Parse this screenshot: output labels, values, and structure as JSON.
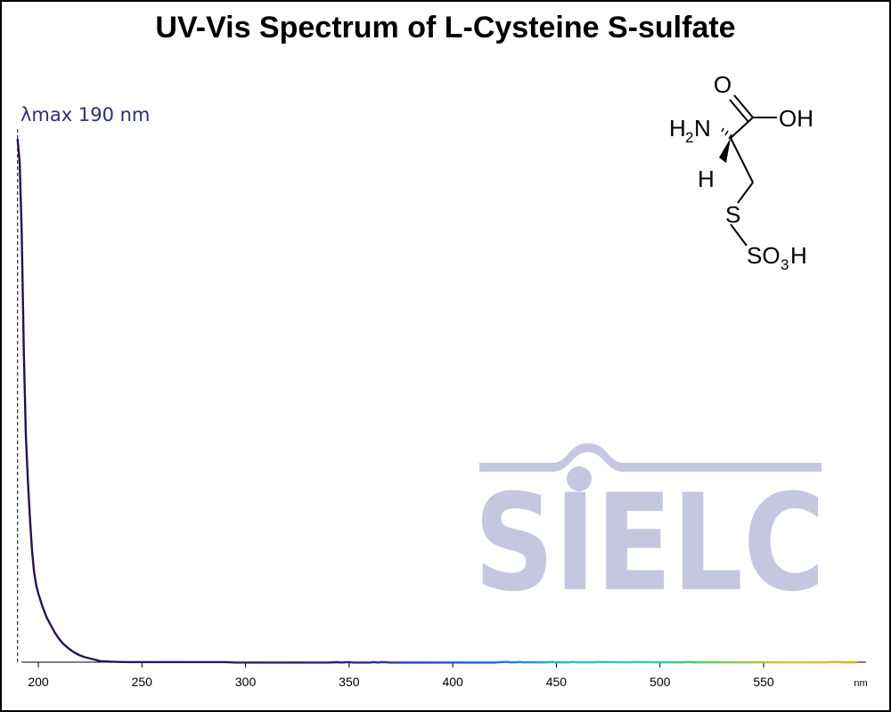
{
  "chart_data": {
    "type": "line",
    "title": "UV-Vis Spectrum of L-Cysteine S-sulfate",
    "xlabel": "",
    "ylabel": "",
    "x_unit": "nm",
    "xlim": [
      190,
      595
    ],
    "ylim": [
      0,
      1.0
    ],
    "x_ticks": [
      200,
      250,
      300,
      350,
      400,
      450,
      500,
      550
    ],
    "grid": false,
    "annotation": {
      "text": "λmax  190 nm",
      "wavelength": 190,
      "style": "dashed vertical line"
    },
    "series": [
      {
        "x": [
          190,
          191,
          192,
          193,
          194,
          195,
          196,
          197,
          198,
          199,
          200,
          202,
          204,
          206,
          208,
          210,
          212,
          214,
          216,
          218,
          220,
          222,
          225,
          228,
          230,
          235,
          240,
          245,
          250,
          260,
          270,
          280,
          290,
          295,
          300,
          320,
          340,
          344,
          346,
          350,
          352,
          354,
          360,
          362,
          364,
          366,
          370,
          380,
          400,
          420,
          426,
          428,
          430,
          432,
          434,
          440,
          446,
          448,
          450,
          456,
          458,
          460,
          468,
          470,
          486,
          488,
          500,
          512,
          514,
          516,
          540,
          560,
          580,
          586,
          588,
          590,
          595
        ],
        "y": [
          1.0,
          0.955,
          0.82,
          0.6,
          0.44,
          0.35,
          0.28,
          0.22,
          0.18,
          0.155,
          0.14,
          0.115,
          0.095,
          0.08,
          0.066,
          0.054,
          0.045,
          0.038,
          0.032,
          0.027,
          0.023,
          0.02,
          0.017,
          0.014,
          0.012,
          0.011,
          0.0105,
          0.0103,
          0.0103,
          0.0103,
          0.0103,
          0.0103,
          0.0103,
          0.0095,
          0.0094,
          0.0094,
          0.0094,
          0.0101,
          0.0094,
          0.0103,
          0.0094,
          0.0094,
          0.0094,
          0.0102,
          0.0094,
          0.0102,
          0.0094,
          0.0094,
          0.0094,
          0.0094,
          0.0106,
          0.0097,
          0.0097,
          0.0105,
          0.0097,
          0.0097,
          0.0097,
          0.0105,
          0.0097,
          0.0097,
          0.0105,
          0.0097,
          0.0097,
          0.0105,
          0.0097,
          0.0105,
          0.0097,
          0.0097,
          0.0106,
          0.0097,
          0.0097,
          0.0097,
          0.0097,
          0.0106,
          0.0097,
          0.0097,
          0.0097
        ]
      }
    ]
  },
  "molecule": {
    "carbonyl_o": "O",
    "hydroxyl": "OH",
    "amine_h": "H",
    "amine_sub": "2",
    "amine_n": "N",
    "alpha_h": "H",
    "sulfur": "S",
    "sulfo_so": "SO",
    "sulfo_sub": "3",
    "sulfo_h": "H"
  },
  "watermark": {
    "text": "SIELC",
    "color": "#c5c7e0"
  },
  "colors": {
    "peak_label": "#2e2e72",
    "spectrum_gradient": [
      "#2a0f4e",
      "#2c1a9c",
      "#1d5cff",
      "#18c8e8",
      "#3ad26f",
      "#f0c020",
      "#f4a020"
    ]
  }
}
